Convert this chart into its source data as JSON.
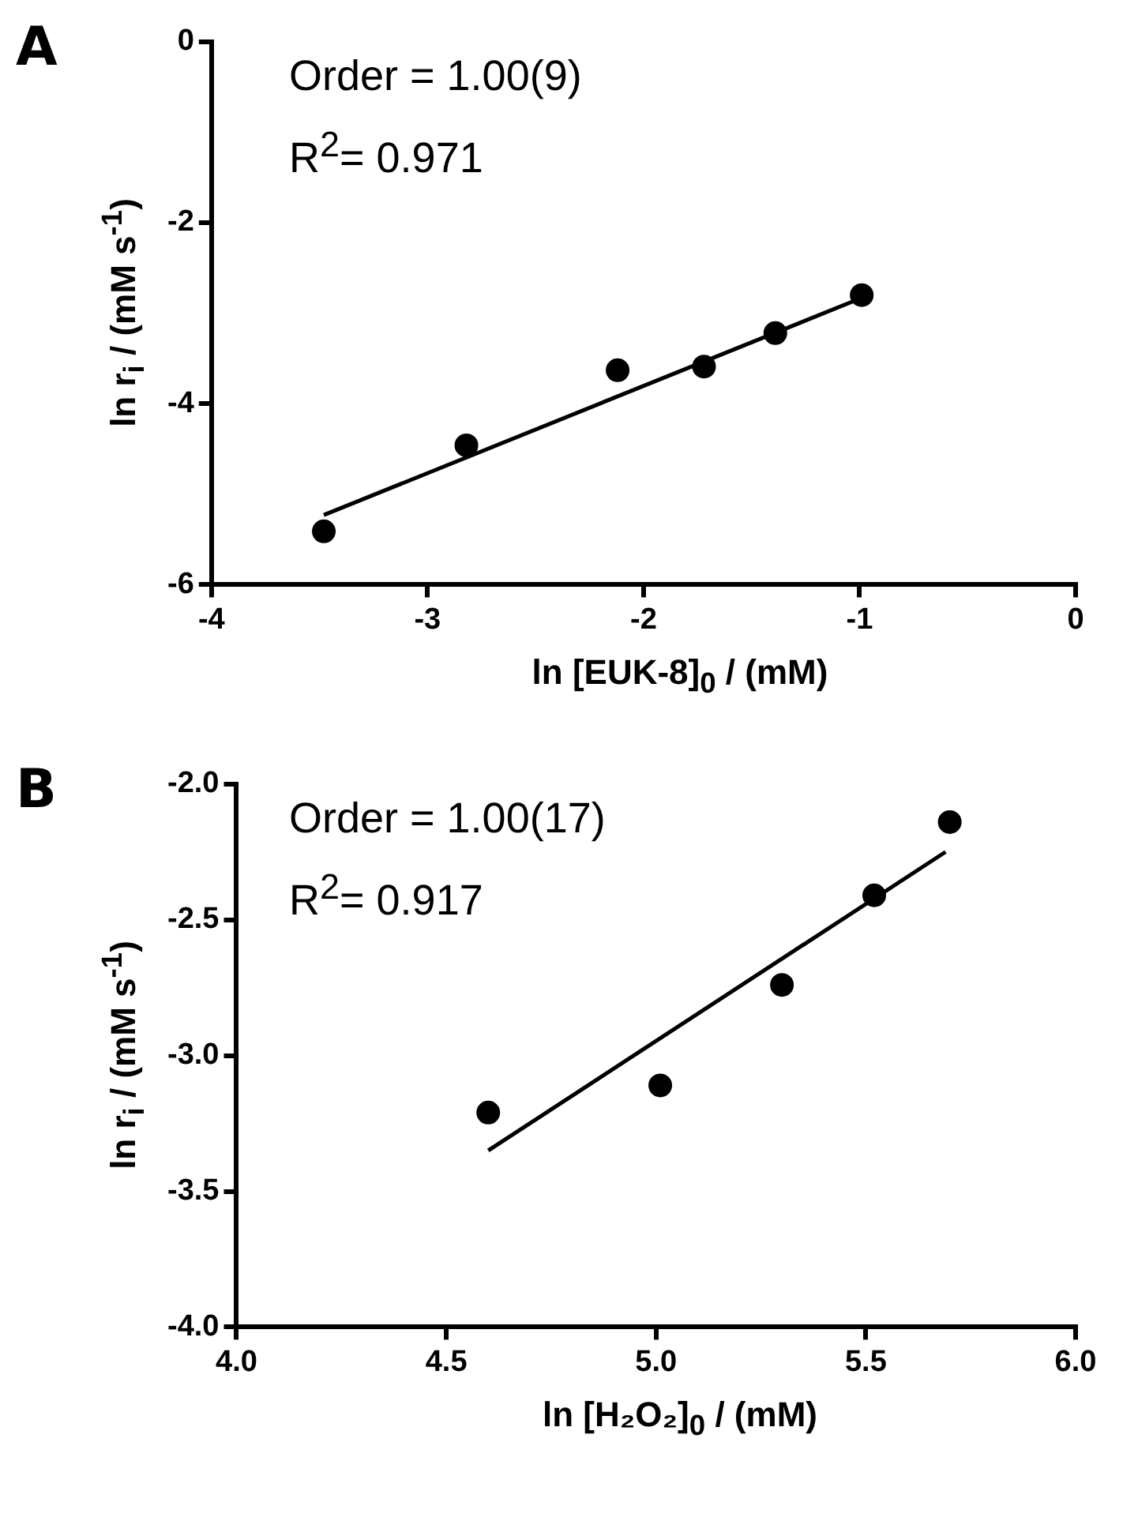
{
  "chart_data": [
    {
      "type": "scatter",
      "title": "A",
      "xlabel": "ln [EUK-8]$_{0}$ / (mM)",
      "ylabel": "ln r$_{i}$ / (mM s$^{-1}$)",
      "annotations": [
        "Order = 1.00(9)",
        "R$^{2}$= 0.971"
      ],
      "xlim": [
        -4,
        0
      ],
      "xticks": [
        -4,
        -3,
        -2,
        -1,
        0
      ],
      "ylim": [
        -6,
        0
      ],
      "yticks": [
        -6,
        -4,
        -2,
        0
      ],
      "series": [
        {
          "color": "#000000",
          "marker": "circle",
          "x": [
            -3.48,
            -2.82,
            -2.12,
            -1.72,
            -1.39,
            -0.99
          ],
          "values": [
            -5.41,
            -4.46,
            -3.63,
            -3.59,
            -3.22,
            -2.8
          ]
        },
        {
          "type": "line",
          "color": "#000000",
          "marker": "none",
          "x": [
            -3.48,
            -1.0
          ],
          "values": [
            -5.23,
            -2.84
          ]
        }
      ]
    },
    {
      "type": "scatter",
      "title": "B",
      "xlabel": "ln [H₂O₂]$_{0}$ / (mM)",
      "ylabel": "ln r$_{i}$ / (mM s$^{-1}$)",
      "annotations": [
        "Order = 1.00(17)",
        "R$^{2}$= 0.917"
      ],
      "xlim": [
        4,
        6
      ],
      "xticks": [
        {
          "value": 4,
          "label": "4.0"
        },
        {
          "value": 4.5,
          "label": "4.5"
        },
        {
          "value": 5,
          "label": "5.0"
        },
        {
          "value": 5.5,
          "label": "5.5"
        },
        {
          "value": 6,
          "label": "6.0"
        }
      ],
      "ylim": [
        -4,
        -2
      ],
      "yticks": [
        {
          "value": -4,
          "label": "-4.0"
        },
        {
          "value": -3.5,
          "label": "-3.5"
        },
        {
          "value": -3,
          "label": "-3.0"
        },
        {
          "value": -2.5,
          "label": "-2.5"
        },
        {
          "value": -2,
          "label": "-2.0"
        }
      ],
      "series": [
        {
          "color": "#000000",
          "marker": "circle",
          "x": [
            4.6,
            5.01,
            5.3,
            5.52,
            5.7
          ],
          "values": [
            -3.21,
            -3.11,
            -2.74,
            -2.41,
            -2.14
          ]
        },
        {
          "type": "line",
          "color": "#000000",
          "marker": "none",
          "x": [
            4.6,
            5.69
          ],
          "values": [
            -3.35,
            -2.25
          ]
        }
      ]
    }
  ]
}
